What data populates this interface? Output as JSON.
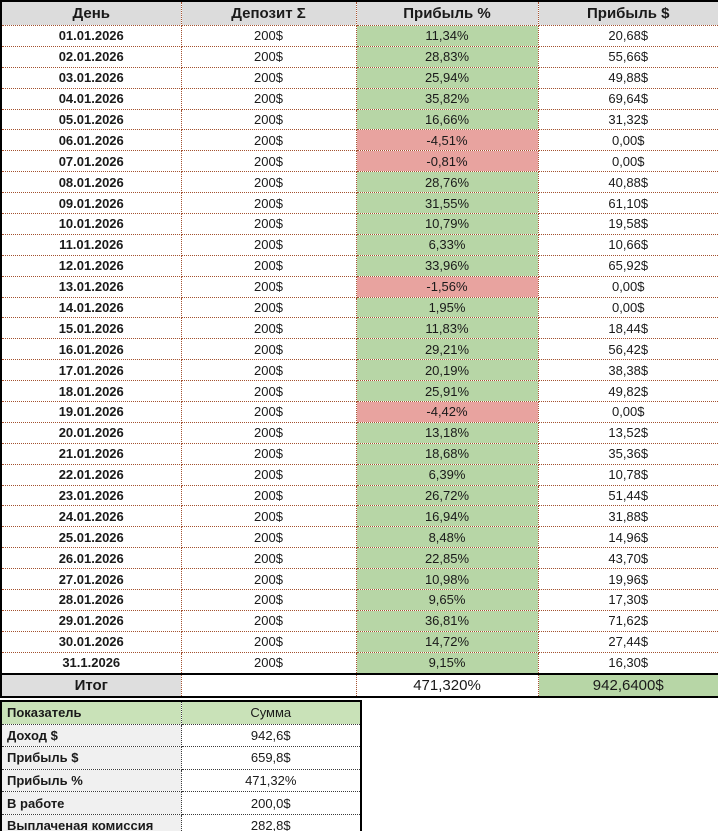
{
  "colors": {
    "positive_bg": "#b7d6a6",
    "negative_bg": "#e8a39f",
    "header_bg": "#dcdcdc",
    "summary_header_bg": "#c9e2b8",
    "summary_label_bg": "#f0f0f0",
    "grid_dotted_main": "#a3512f",
    "grid_dotted_summary": "#3a3a3a",
    "outer_border": "#000000"
  },
  "main_table": {
    "headers": [
      "День",
      "Депозит Σ",
      "Прибыль %",
      "Прибыль $"
    ],
    "rows": [
      {
        "date": "01.01.2026",
        "deposit": "200$",
        "percent": "11,34%",
        "profit": "20,68$",
        "negative": false
      },
      {
        "date": "02.01.2026",
        "deposit": "200$",
        "percent": "28,83%",
        "profit": "55,66$",
        "negative": false
      },
      {
        "date": "03.01.2026",
        "deposit": "200$",
        "percent": "25,94%",
        "profit": "49,88$",
        "negative": false
      },
      {
        "date": "04.01.2026",
        "deposit": "200$",
        "percent": "35,82%",
        "profit": "69,64$",
        "negative": false
      },
      {
        "date": "05.01.2026",
        "deposit": "200$",
        "percent": "16,66%",
        "profit": "31,32$",
        "negative": false
      },
      {
        "date": "06.01.2026",
        "deposit": "200$",
        "percent": "-4,51%",
        "profit": "0,00$",
        "negative": true
      },
      {
        "date": "07.01.2026",
        "deposit": "200$",
        "percent": "-0,81%",
        "profit": "0,00$",
        "negative": true
      },
      {
        "date": "08.01.2026",
        "deposit": "200$",
        "percent": "28,76%",
        "profit": "40,88$",
        "negative": false
      },
      {
        "date": "09.01.2026",
        "deposit": "200$",
        "percent": "31,55%",
        "profit": "61,10$",
        "negative": false
      },
      {
        "date": "10.01.2026",
        "deposit": "200$",
        "percent": "10,79%",
        "profit": "19,58$",
        "negative": false
      },
      {
        "date": "11.01.2026",
        "deposit": "200$",
        "percent": "6,33%",
        "profit": "10,66$",
        "negative": false
      },
      {
        "date": "12.01.2026",
        "deposit": "200$",
        "percent": "33,96%",
        "profit": "65,92$",
        "negative": false
      },
      {
        "date": "13.01.2026",
        "deposit": "200$",
        "percent": "-1,56%",
        "profit": "0,00$",
        "negative": true
      },
      {
        "date": "14.01.2026",
        "deposit": "200$",
        "percent": "1,95%",
        "profit": "0,00$",
        "negative": false
      },
      {
        "date": "15.01.2026",
        "deposit": "200$",
        "percent": "11,83%",
        "profit": "18,44$",
        "negative": false
      },
      {
        "date": "16.01.2026",
        "deposit": "200$",
        "percent": "29,21%",
        "profit": "56,42$",
        "negative": false
      },
      {
        "date": "17.01.2026",
        "deposit": "200$",
        "percent": "20,19%",
        "profit": "38,38$",
        "negative": false
      },
      {
        "date": "18.01.2026",
        "deposit": "200$",
        "percent": "25,91%",
        "profit": "49,82$",
        "negative": false
      },
      {
        "date": "19.01.2026",
        "deposit": "200$",
        "percent": "-4,42%",
        "profit": "0,00$",
        "negative": true
      },
      {
        "date": "20.01.2026",
        "deposit": "200$",
        "percent": "13,18%",
        "profit": "13,52$",
        "negative": false
      },
      {
        "date": "21.01.2026",
        "deposit": "200$",
        "percent": "18,68%",
        "profit": "35,36$",
        "negative": false
      },
      {
        "date": "22.01.2026",
        "deposit": "200$",
        "percent": "6,39%",
        "profit": "10,78$",
        "negative": false
      },
      {
        "date": "23.01.2026",
        "deposit": "200$",
        "percent": "26,72%",
        "profit": "51,44$",
        "negative": false
      },
      {
        "date": "24.01.2026",
        "deposit": "200$",
        "percent": "16,94%",
        "profit": "31,88$",
        "negative": false
      },
      {
        "date": "25.01.2026",
        "deposit": "200$",
        "percent": "8,48%",
        "profit": "14,96$",
        "negative": false
      },
      {
        "date": "26.01.2026",
        "deposit": "200$",
        "percent": "22,85%",
        "profit": "43,70$",
        "negative": false
      },
      {
        "date": "27.01.2026",
        "deposit": "200$",
        "percent": "10,98%",
        "profit": "19,96$",
        "negative": false
      },
      {
        "date": "28.01.2026",
        "deposit": "200$",
        "percent": "9,65%",
        "profit": "17,30$",
        "negative": false
      },
      {
        "date": "29.01.2026",
        "deposit": "200$",
        "percent": "36,81%",
        "profit": "71,62$",
        "negative": false
      },
      {
        "date": "30.01.2026",
        "deposit": "200$",
        "percent": "14,72%",
        "profit": "27,44$",
        "negative": false
      },
      {
        "date": "31.1.2026",
        "deposit": "200$",
        "percent": "9,15%",
        "profit": "16,30$",
        "negative": false
      }
    ],
    "total": {
      "label": "Итог",
      "deposit": "",
      "percent": "471,320%",
      "profit": "942,6400$"
    }
  },
  "summary_table": {
    "headers": [
      "Показатель",
      "Сумма"
    ],
    "rows": [
      {
        "label": "Доход $",
        "value": "942,6$"
      },
      {
        "label": "Прибыль $",
        "value": "659,8$"
      },
      {
        "label": "Прибыль %",
        "value": "471,32%"
      },
      {
        "label": "В работе",
        "value": "200,0$"
      },
      {
        "label": "Выплаченая комиссия",
        "value": "282,8$"
      }
    ]
  }
}
